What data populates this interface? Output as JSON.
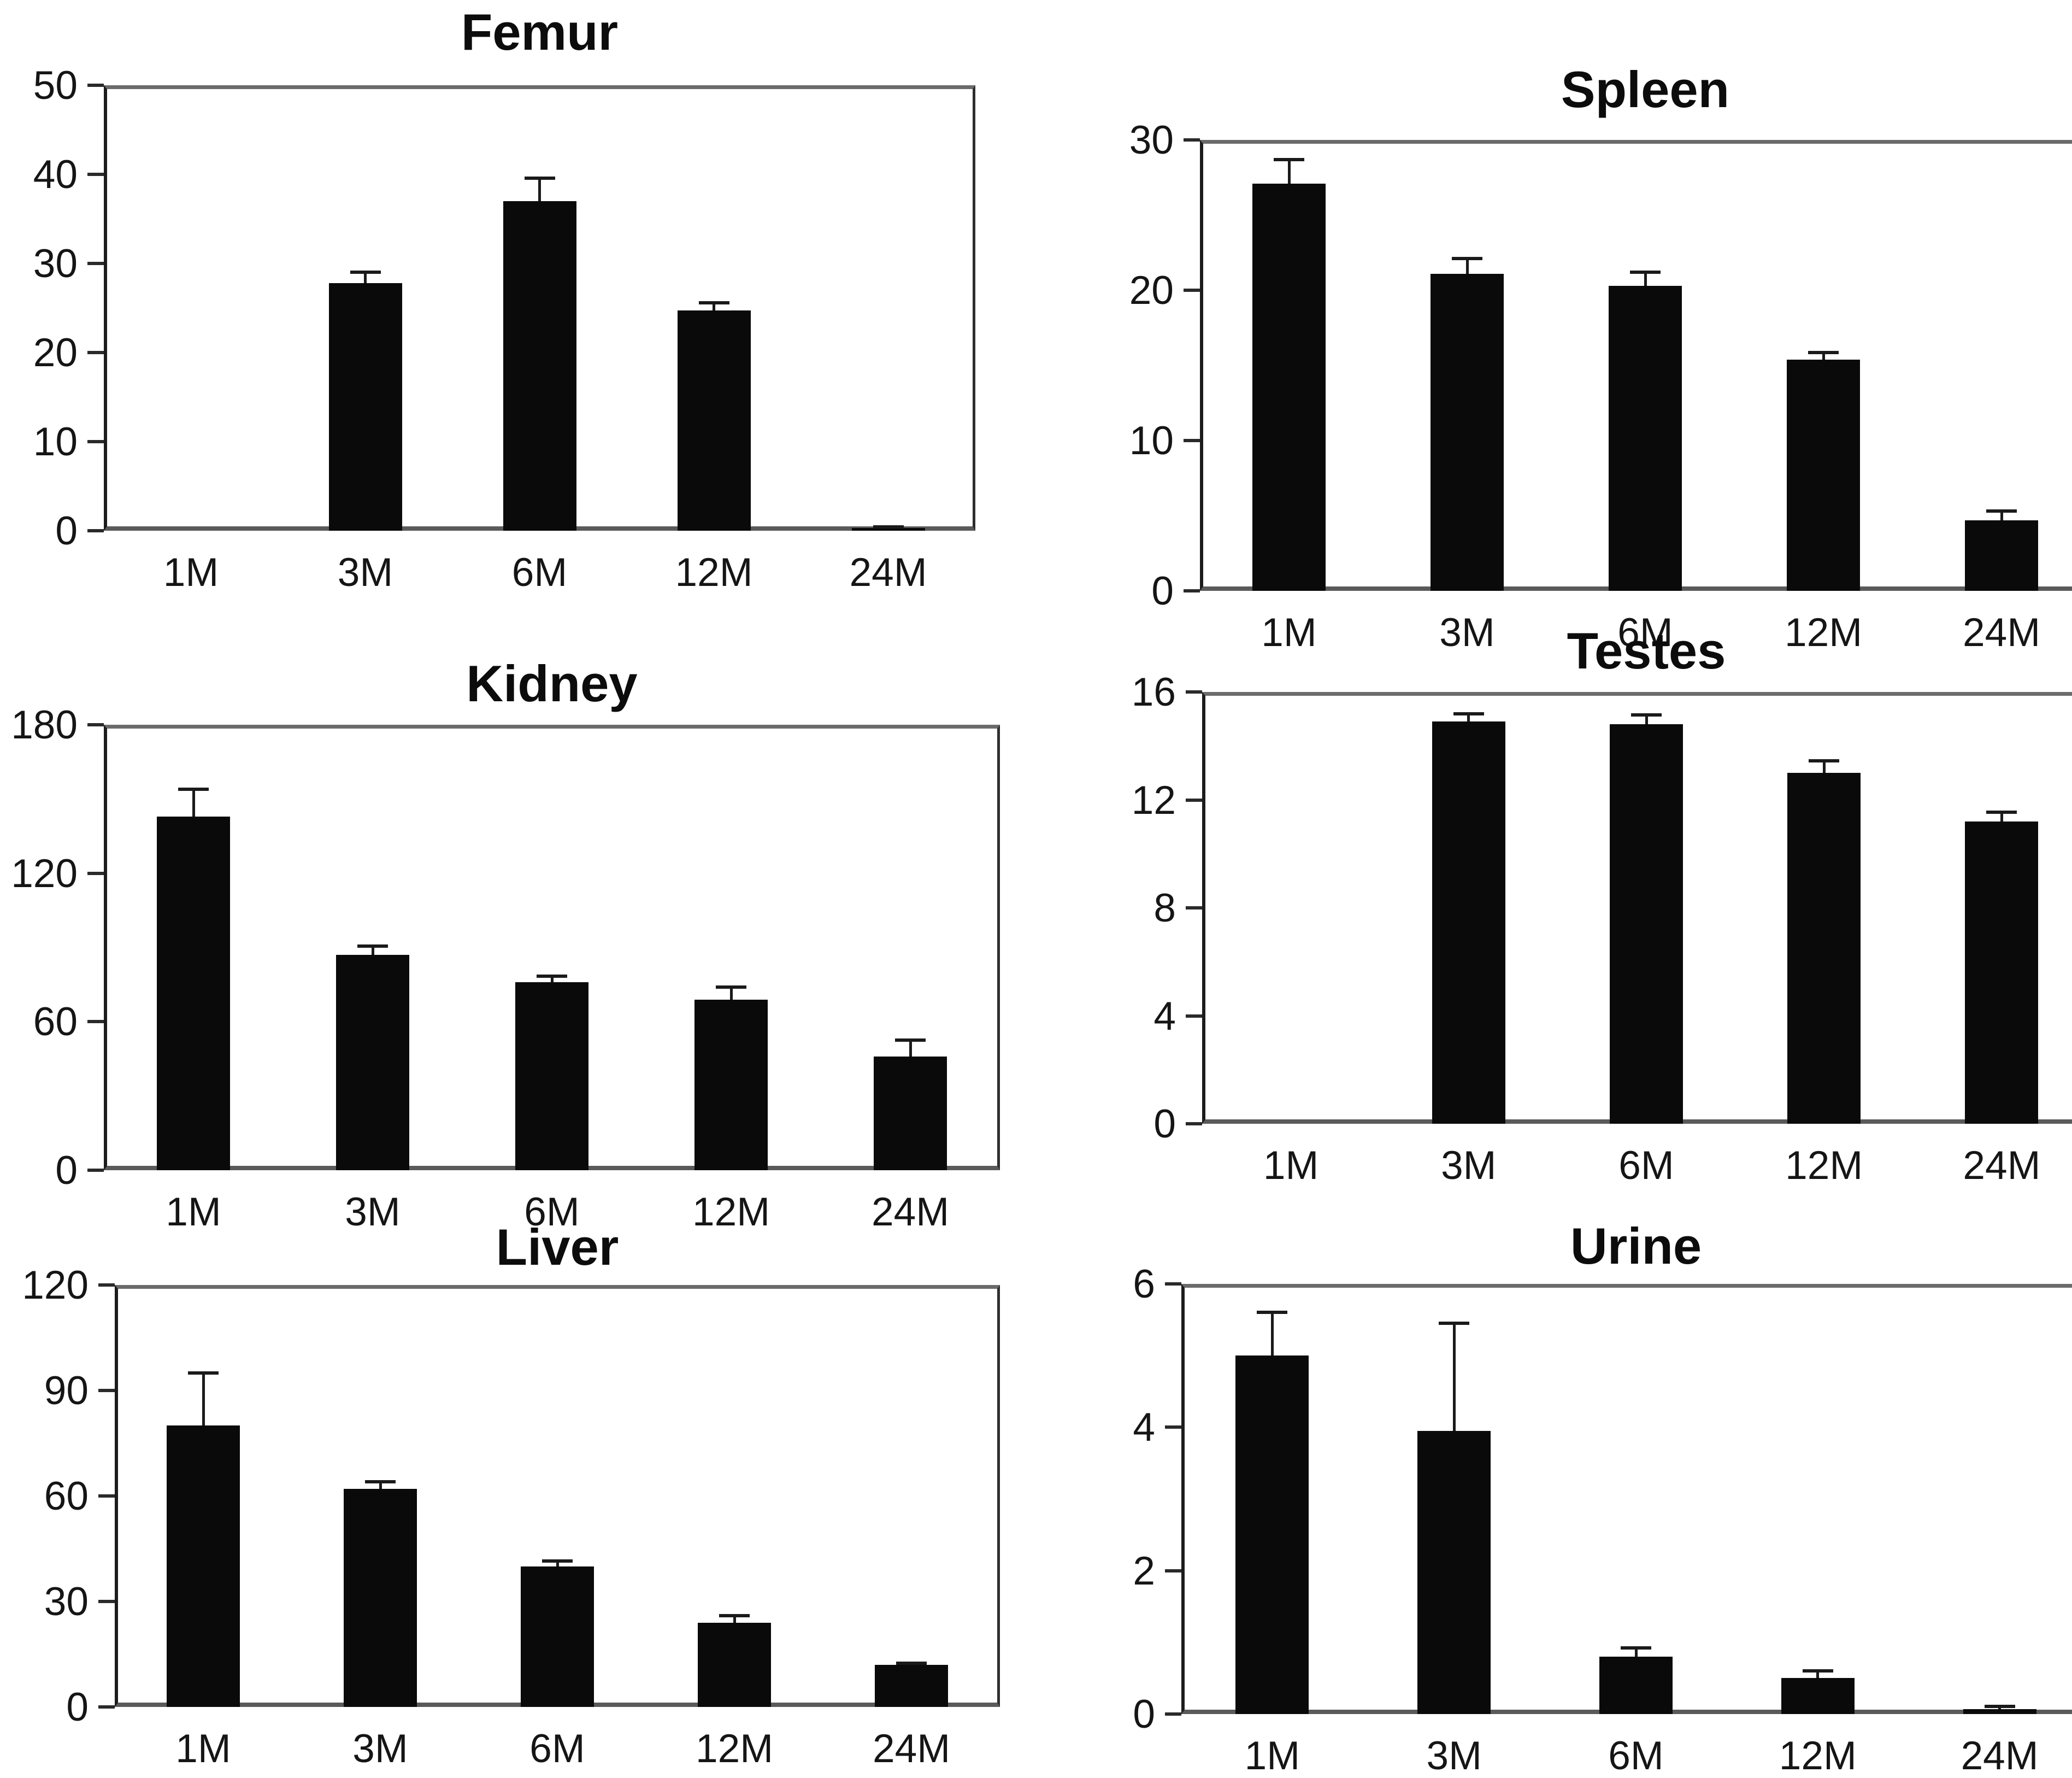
{
  "figure": {
    "background_color": "#ffffff",
    "bar_color": "#0a0a0a",
    "frame_color": "#3f3f3f",
    "text_color": "#111111",
    "error_bars": "plus direction, capped"
  },
  "categories": [
    "1M",
    "3M",
    "6M",
    "12M",
    "24M"
  ],
  "chart_data": [
    {
      "type": "bar",
      "title": "Femur",
      "categories": [
        "1M",
        "3M",
        "6M",
        "12M",
        "24M"
      ],
      "values": [
        0,
        27.8,
        37.0,
        24.7,
        0.3
      ],
      "errors": [
        0,
        1.2,
        2.6,
        0.9,
        0.15
      ],
      "xlabel": "",
      "ylabel": "",
      "ylim": [
        0,
        50
      ],
      "yticks": [
        0,
        10,
        20,
        30,
        40,
        50
      ],
      "grid": false,
      "legend": "none"
    },
    {
      "type": "bar",
      "title": "Spleen",
      "categories": [
        "1M",
        "3M",
        "6M",
        "12M",
        "24M"
      ],
      "values": [
        27.1,
        21.1,
        20.3,
        15.4,
        4.7
      ],
      "errors": [
        1.6,
        1.0,
        0.9,
        0.45,
        0.6
      ],
      "xlabel": "",
      "ylabel": "",
      "ylim": [
        0,
        30
      ],
      "yticks": [
        0,
        10,
        20,
        30
      ],
      "grid": false,
      "legend": "none"
    },
    {
      "type": "bar",
      "title": "Kidney",
      "categories": [
        "1M",
        "3M",
        "6M",
        "12M",
        "24M"
      ],
      "values": [
        143,
        87,
        76,
        69,
        46
      ],
      "errors": [
        11,
        3.5,
        2.5,
        5,
        6.5
      ],
      "xlabel": "",
      "ylabel": "",
      "ylim": [
        0,
        180
      ],
      "yticks": [
        0,
        60,
        120,
        180
      ],
      "grid": false,
      "legend": "none"
    },
    {
      "type": "bar",
      "title": "Testes",
      "categories": [
        "1M",
        "3M",
        "6M",
        "12M",
        "24M"
      ],
      "values": [
        0,
        14.9,
        14.8,
        13.0,
        11.2
      ],
      "errors": [
        0,
        0.3,
        0.35,
        0.45,
        0.35
      ],
      "xlabel": "",
      "ylabel": "",
      "ylim": [
        0,
        16
      ],
      "yticks": [
        0,
        4,
        8,
        12,
        16
      ],
      "grid": false,
      "legend": "none"
    },
    {
      "type": "bar",
      "title": "Liver",
      "categories": [
        "1M",
        "3M",
        "6M",
        "12M",
        "24M"
      ],
      "values": [
        80,
        62,
        40,
        24,
        12
      ],
      "errors": [
        15,
        2,
        1.5,
        2,
        0.5
      ],
      "xlabel": "",
      "ylabel": "",
      "ylim": [
        0,
        120
      ],
      "yticks": [
        0,
        30,
        60,
        90,
        120
      ],
      "grid": false,
      "legend": "none"
    },
    {
      "type": "bar",
      "title": "Urine",
      "categories": [
        "1M",
        "3M",
        "6M",
        "12M",
        "24M"
      ],
      "values": [
        5.0,
        3.95,
        0.8,
        0.5,
        0.07
      ],
      "errors": [
        0.6,
        1.5,
        0.12,
        0.1,
        0.04
      ],
      "xlabel": "",
      "ylabel": "",
      "ylim": [
        0,
        6
      ],
      "yticks": [
        0,
        2,
        4,
        6
      ],
      "grid": false,
      "legend": "none"
    }
  ]
}
